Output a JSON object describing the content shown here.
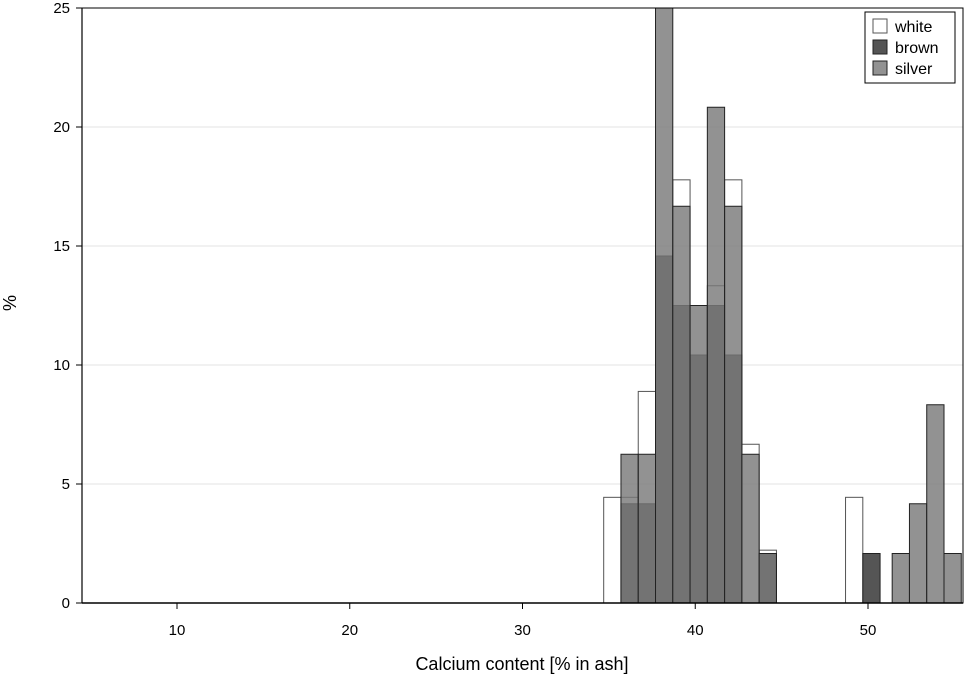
{
  "chart_data": {
    "type": "bar",
    "title": "",
    "xlabel": "Calcium content [% in ash]",
    "ylabel": "%",
    "xlim": [
      4.5,
      55.5
    ],
    "ylim": [
      0,
      25
    ],
    "xticks": [
      "10",
      "20",
      "30",
      "40",
      "50"
    ],
    "xtick_values": [
      10,
      20,
      30,
      40,
      50
    ],
    "yticks": [
      "0",
      "5",
      "10",
      "15",
      "20",
      "25"
    ],
    "ytick_values": [
      0,
      5,
      10,
      15,
      20,
      25
    ],
    "grid": true,
    "legend_position": "top-right",
    "series": [
      {
        "name": "white",
        "fill": "#ffffff",
        "stroke": "#555555",
        "fill_opacity": 0,
        "bins": [
          {
            "x0": 34.7,
            "x1": 35.7,
            "y": 4.44
          },
          {
            "x0": 35.7,
            "x1": 36.7,
            "y": 4.44
          },
          {
            "x0": 36.7,
            "x1": 37.7,
            "y": 8.89
          },
          {
            "x0": 37.7,
            "x1": 38.7,
            "y": 11.11
          },
          {
            "x0": 38.7,
            "x1": 39.7,
            "y": 17.78
          },
          {
            "x0": 39.7,
            "x1": 40.7,
            "y": 8.89
          },
          {
            "x0": 40.7,
            "x1": 41.7,
            "y": 13.33
          },
          {
            "x0": 41.7,
            "x1": 42.7,
            "y": 17.78
          },
          {
            "x0": 42.7,
            "x1": 43.7,
            "y": 6.67
          },
          {
            "x0": 43.7,
            "x1": 44.7,
            "y": 2.22
          },
          {
            "x0": 48.7,
            "x1": 49.7,
            "y": 4.44
          }
        ]
      },
      {
        "name": "brown",
        "fill": "#555555",
        "stroke": "#222222",
        "fill_opacity": 1,
        "bins": [
          {
            "x0": 35.7,
            "x1": 36.7,
            "y": 4.17
          },
          {
            "x0": 36.7,
            "x1": 37.7,
            "y": 4.17
          },
          {
            "x0": 37.7,
            "x1": 38.7,
            "y": 14.58
          },
          {
            "x0": 38.7,
            "x1": 39.7,
            "y": 12.5
          },
          {
            "x0": 39.7,
            "x1": 40.7,
            "y": 10.42
          },
          {
            "x0": 40.7,
            "x1": 41.7,
            "y": 12.5
          },
          {
            "x0": 41.7,
            "x1": 42.7,
            "y": 10.42
          },
          {
            "x0": 43.7,
            "x1": 44.7,
            "y": 2.08
          },
          {
            "x0": 49.7,
            "x1": 50.7,
            "y": 2.08
          }
        ]
      },
      {
        "name": "silver",
        "fill": "#7a7a7a",
        "stroke": "#222222",
        "fill_opacity": 0.82,
        "bins": [
          {
            "x0": 35.7,
            "x1": 36.7,
            "y": 6.25
          },
          {
            "x0": 36.7,
            "x1": 37.7,
            "y": 6.25
          },
          {
            "x0": 37.7,
            "x1": 38.7,
            "y": 25
          },
          {
            "x0": 38.7,
            "x1": 39.7,
            "y": 16.67
          },
          {
            "x0": 39.7,
            "x1": 40.7,
            "y": 12.5
          },
          {
            "x0": 40.7,
            "x1": 41.7,
            "y": 20.83
          },
          {
            "x0": 41.7,
            "x1": 42.7,
            "y": 16.67
          },
          {
            "x0": 42.7,
            "x1": 43.7,
            "y": 6.25
          },
          {
            "x0": 43.7,
            "x1": 44.7,
            "y": 2.08
          },
          {
            "x0": 51.4,
            "x1": 52.4,
            "y": 2.08
          },
          {
            "x0": 52.4,
            "x1": 53.4,
            "y": 4.17
          },
          {
            "x0": 53.4,
            "x1": 54.4,
            "y": 8.33
          },
          {
            "x0": 54.4,
            "x1": 55.4,
            "y": 2.08
          }
        ]
      }
    ]
  }
}
